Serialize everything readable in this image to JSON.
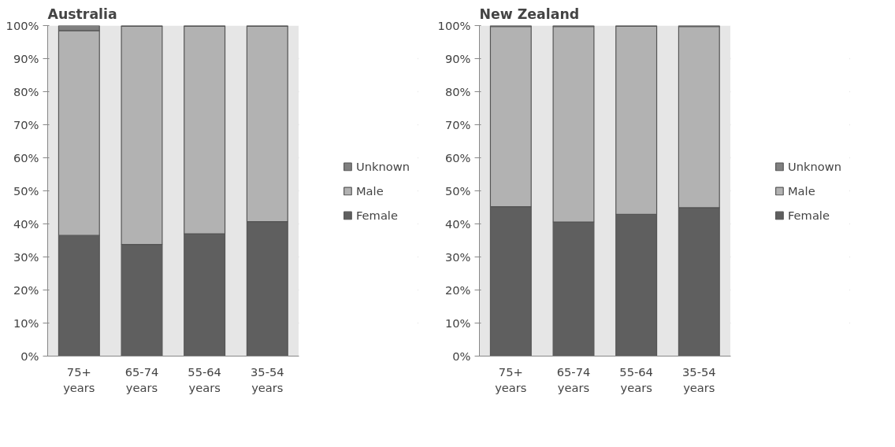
{
  "chart_data": [
    {
      "type": "bar",
      "title": "Australia",
      "categories": [
        "75+ years",
        "65-74 years",
        "55-64 years",
        "35-54 years"
      ],
      "stacked": true,
      "ylim": [
        0,
        100
      ],
      "yticks": [
        {
          "value": 0,
          "label": "0%"
        },
        {
          "value": 10,
          "label": "10%"
        },
        {
          "value": 20,
          "label": "20%"
        },
        {
          "value": 30,
          "label": "30%"
        },
        {
          "value": 40,
          "label": "40%"
        },
        {
          "value": 50,
          "label": "50%"
        },
        {
          "value": 60,
          "label": "60%"
        },
        {
          "value": 70,
          "label": "70%"
        },
        {
          "value": 80,
          "label": "80%"
        },
        {
          "value": 90,
          "label": "90%"
        },
        {
          "value": 100,
          "label": "100%"
        }
      ],
      "grid": "y",
      "legend": "right",
      "series": [
        {
          "name": "Female",
          "color": "#5f5f5f",
          "values": [
            36.5,
            33.8,
            37,
            40.7
          ]
        },
        {
          "name": "Male",
          "color": "#b2b2b2",
          "values": [
            62,
            66,
            62.8,
            59.1
          ]
        },
        {
          "name": "Unknown",
          "color": "#808080",
          "values": [
            1.5,
            0.2,
            0.2,
            0.2
          ]
        }
      ]
    },
    {
      "type": "bar",
      "title": "New Zealand",
      "categories": [
        "75+ years",
        "65-74 years",
        "55-64 years",
        "35-54 years"
      ],
      "stacked": true,
      "ylim": [
        0,
        100
      ],
      "yticks": [
        {
          "value": 0,
          "label": "0%"
        },
        {
          "value": 10,
          "label": "10%"
        },
        {
          "value": 20,
          "label": "20%"
        },
        {
          "value": 30,
          "label": "30%"
        },
        {
          "value": 40,
          "label": "40%"
        },
        {
          "value": 50,
          "label": "50%"
        },
        {
          "value": 60,
          "label": "60%"
        },
        {
          "value": 70,
          "label": "70%"
        },
        {
          "value": 80,
          "label": "80%"
        },
        {
          "value": 90,
          "label": "90%"
        },
        {
          "value": 100,
          "label": "100%"
        }
      ],
      "grid": "y",
      "legend": "right",
      "series": [
        {
          "name": "Female",
          "color": "#5f5f5f",
          "values": [
            45.2,
            40.6,
            42.9,
            44.9
          ]
        },
        {
          "name": "Male",
          "color": "#b2b2b2",
          "values": [
            54.5,
            59.1,
            56.9,
            54.8
          ]
        },
        {
          "name": "Unknown",
          "color": "#808080",
          "values": [
            0.3,
            0.3,
            0.2,
            0.3
          ]
        }
      ]
    }
  ]
}
